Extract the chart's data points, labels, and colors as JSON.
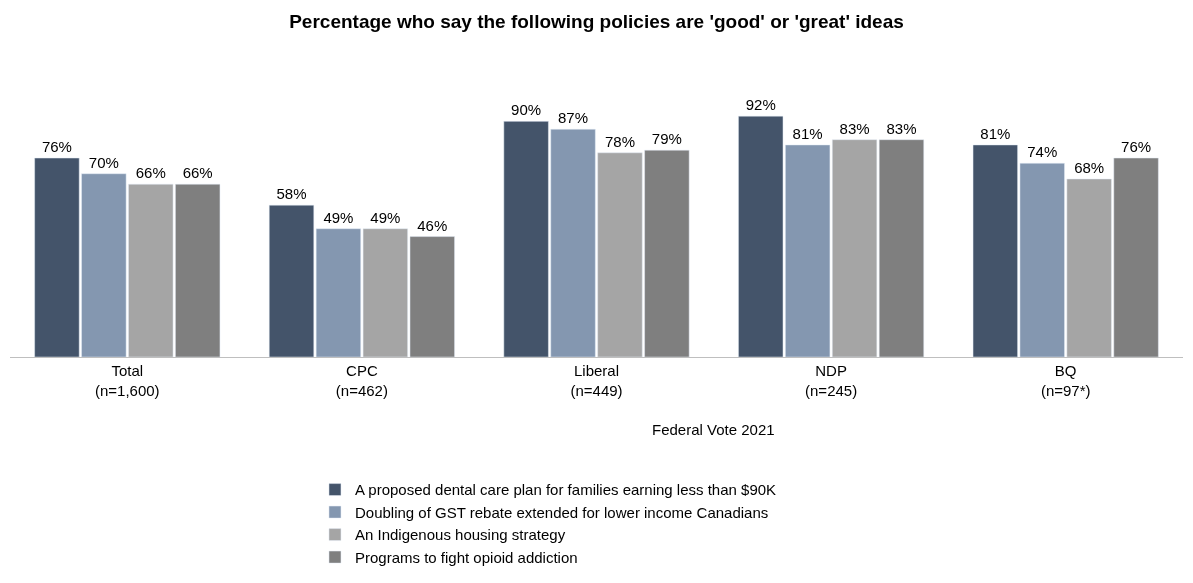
{
  "chart_data": {
    "type": "bar",
    "title": "Percentage who say the following policies are 'good' or 'great' ideas",
    "categories": [
      "Total\n(n=1,600)",
      "CPC\n(n=462)",
      "Liberal\n(n=449)",
      "NDP\n(n=245)",
      "BQ\n(n=97*)"
    ],
    "annotations": [
      "Federal Vote 2021"
    ],
    "series": [
      {
        "name": "A proposed dental care plan for families earning less than $90K",
        "color": "#44546a",
        "values": [
          76,
          58,
          90,
          92,
          81
        ],
        "value_labels": [
          "76%",
          "58%",
          "90%",
          "92%",
          "81%"
        ]
      },
      {
        "name": "Doubling of GST rebate extended for lower income Canadians",
        "color": "#8497b0",
        "values": [
          70,
          49,
          87,
          81,
          74
        ],
        "value_labels": [
          "70%",
          "49%",
          "87%",
          "81%",
          "74%"
        ]
      },
      {
        "name": "An Indigenous housing strategy",
        "color": "#a5a5a5",
        "values": [
          66,
          49,
          78,
          83,
          68
        ],
        "value_labels": [
          "66%",
          "49%",
          "78%",
          "83%",
          "68%"
        ]
      },
      {
        "name": "Programs to fight opioid addiction",
        "color": "#7f7f7f",
        "values": [
          66,
          46,
          79,
          83,
          76
        ],
        "value_labels": [
          "66%",
          "46%",
          "79%",
          "83%",
          "76%"
        ]
      }
    ],
    "legend": "bottom"
  }
}
